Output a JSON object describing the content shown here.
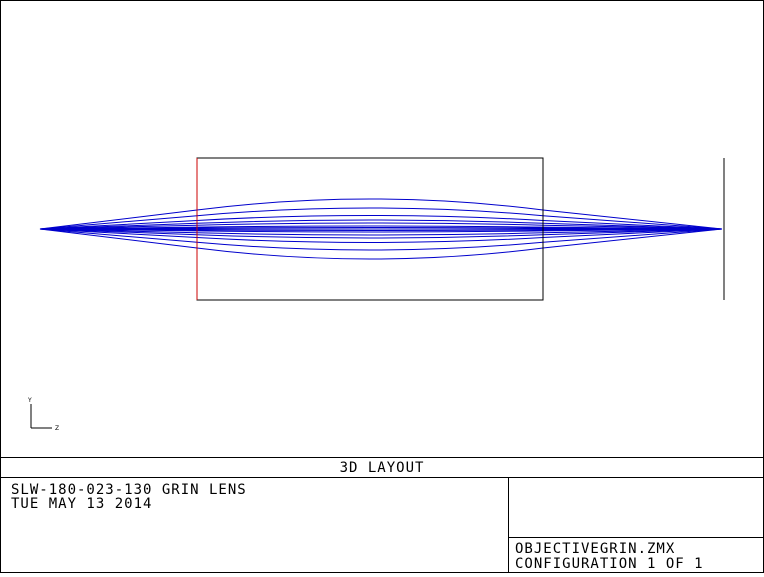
{
  "header": {
    "title": "3D LAYOUT"
  },
  "footer": {
    "left_line1": "SLW-180-023-130 GRIN LENS",
    "left_line2": "TUE MAY 13 2014",
    "right_line1": "OBJECTIVEGRIN.ZMX",
    "right_line2": "CONFIGURATION 1 OF 1"
  },
  "axes_indicator": {
    "vertical_label": "Y",
    "horizontal_label": "Z"
  },
  "colors": {
    "ray": "#0000cc",
    "lens_front": "#cc0000",
    "outline": "#000000"
  },
  "rays": {
    "amplitudes": [
      1,
      0.7,
      0.45,
      0.3,
      0.2,
      0.1,
      0.05
    ]
  }
}
